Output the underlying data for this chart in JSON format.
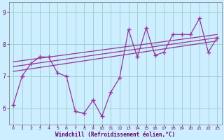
{
  "xlabel": "Windchill (Refroidissement éolien,°C)",
  "bg_color": "#cceeff",
  "line_color": "#993399",
  "grid_color": "#99cccc",
  "axis_label_color": "#660066",
  "tick_label_color": "#660066",
  "border_color": "#888888",
  "x_values": [
    0,
    1,
    2,
    3,
    4,
    5,
    6,
    7,
    8,
    9,
    10,
    11,
    12,
    13,
    14,
    15,
    16,
    17,
    18,
    19,
    20,
    21,
    22,
    23
  ],
  "series1": [
    6.1,
    7.0,
    7.4,
    7.6,
    7.6,
    7.1,
    7.0,
    5.9,
    5.85,
    6.25,
    5.75,
    6.5,
    6.95,
    8.45,
    7.6,
    8.5,
    7.65,
    7.75,
    8.3,
    8.3,
    8.3,
    8.8,
    7.75,
    8.2
  ],
  "trend_lines": [
    {
      "x": [
        0,
        23
      ],
      "y": [
        7.15,
        8.1
      ]
    },
    {
      "x": [
        0,
        23
      ],
      "y": [
        7.3,
        8.2
      ]
    },
    {
      "x": [
        0,
        23
      ],
      "y": [
        7.45,
        8.3
      ]
    }
  ],
  "ylim": [
    5.5,
    9.3
  ],
  "xlim": [
    -0.5,
    23.5
  ],
  "yticks": [
    6,
    7,
    8,
    9
  ],
  "xticks": [
    0,
    1,
    2,
    3,
    4,
    5,
    6,
    7,
    8,
    9,
    10,
    11,
    12,
    13,
    14,
    15,
    16,
    17,
    18,
    19,
    20,
    21,
    22,
    23
  ]
}
